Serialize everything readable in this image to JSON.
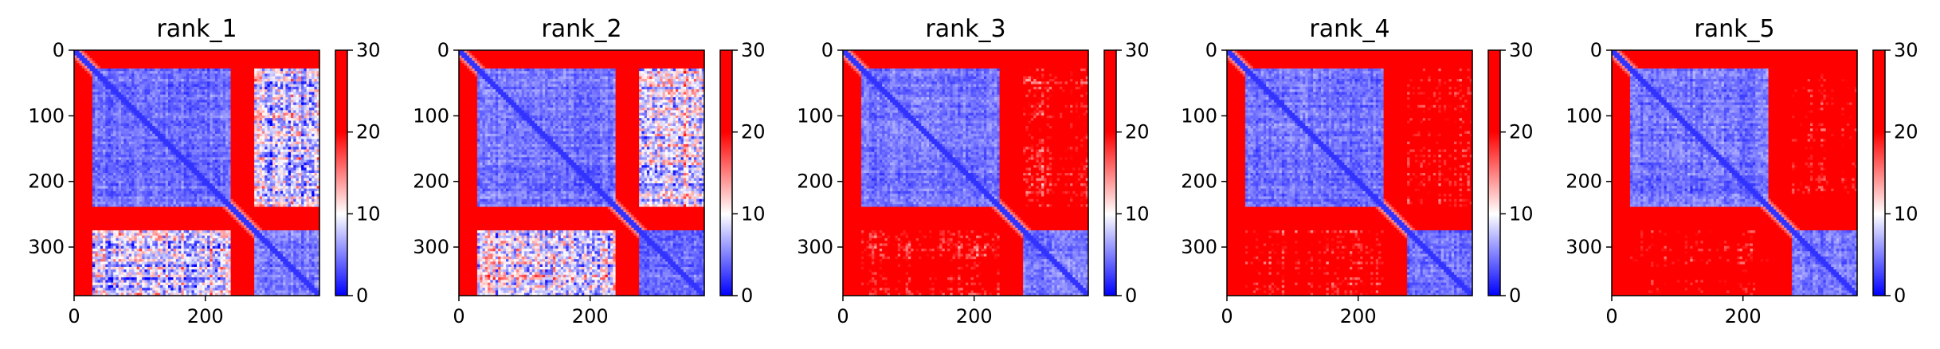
{
  "chart_data": [
    {
      "type": "heatmap",
      "title": "rank_1",
      "matrix_size": 374,
      "domain_boundaries": [
        30,
        240,
        278
      ],
      "xticks": [
        0,
        200
      ],
      "yticks": [
        0,
        100,
        200,
        300
      ],
      "colorbar": {
        "range": [
          0,
          30
        ],
        "ticks": [
          0,
          10,
          20,
          30
        ],
        "colors": [
          "#0000ff",
          "#ffffff",
          "#ff0000"
        ]
      },
      "blocks": {
        "dom1_dom1": 3,
        "dom2_dom2": 3,
        "dom1_dom2": 8,
        "linker": 28,
        "nterm": 27
      }
    },
    {
      "type": "heatmap",
      "title": "rank_2",
      "matrix_size": 374,
      "domain_boundaries": [
        30,
        240,
        278
      ],
      "xticks": [
        0,
        200
      ],
      "yticks": [
        0,
        100,
        200,
        300
      ],
      "colorbar": {
        "range": [
          0,
          30
        ],
        "ticks": [
          0,
          10,
          20,
          30
        ],
        "colors": [
          "#0000ff",
          "#ffffff",
          "#ff0000"
        ]
      },
      "blocks": {
        "dom1_dom1": 3,
        "dom2_dom2": 3,
        "dom1_dom2": 10,
        "linker": 28,
        "nterm": 27
      }
    },
    {
      "type": "heatmap",
      "title": "rank_3",
      "matrix_size": 374,
      "domain_boundaries": [
        30,
        240,
        278
      ],
      "xticks": [
        0,
        200
      ],
      "yticks": [
        0,
        100,
        200,
        300
      ],
      "colorbar": {
        "range": [
          0,
          30
        ],
        "ticks": [
          0,
          10,
          20,
          30
        ],
        "colors": [
          "#0000ff",
          "#ffffff",
          "#ff0000"
        ]
      },
      "blocks": {
        "dom1_dom1": 3,
        "dom2_dom2": 3,
        "dom1_dom2": 22,
        "linker": 28,
        "nterm": 27
      }
    },
    {
      "type": "heatmap",
      "title": "rank_4",
      "matrix_size": 374,
      "domain_boundaries": [
        30,
        240,
        278
      ],
      "xticks": [
        0,
        200
      ],
      "yticks": [
        0,
        100,
        200,
        300
      ],
      "colorbar": {
        "range": [
          0,
          30
        ],
        "ticks": [
          0,
          10,
          20,
          30
        ],
        "colors": [
          "#0000ff",
          "#ffffff",
          "#ff0000"
        ]
      },
      "blocks": {
        "dom1_dom1": 3,
        "dom2_dom2": 3,
        "dom1_dom2": 24,
        "linker": 28,
        "nterm": 27
      }
    },
    {
      "type": "heatmap",
      "title": "rank_5",
      "matrix_size": 374,
      "domain_boundaries": [
        30,
        240,
        278
      ],
      "xticks": [
        0,
        200
      ],
      "yticks": [
        0,
        100,
        200,
        300
      ],
      "colorbar": {
        "range": [
          0,
          30
        ],
        "ticks": [
          0,
          10,
          20,
          30
        ],
        "colors": [
          "#0000ff",
          "#ffffff",
          "#ff0000"
        ]
      },
      "blocks": {
        "dom1_dom1": 3,
        "dom2_dom2": 3,
        "dom1_dom2": 24,
        "linker": 28,
        "nterm": 27
      }
    }
  ]
}
